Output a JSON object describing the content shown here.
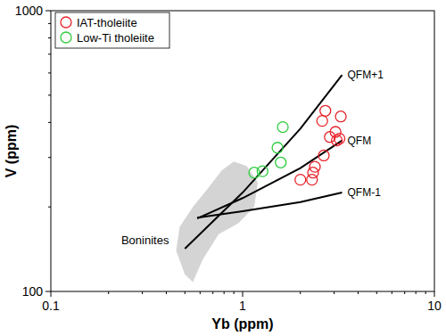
{
  "chart_data": {
    "type": "scatter",
    "x_label": "Yb (ppm)",
    "y_label": "V (ppm)",
    "log": true,
    "xlim": [
      0.1,
      10
    ],
    "ylim": [
      100,
      1000
    ],
    "xticks": [
      0.1,
      1,
      10
    ],
    "yticks": [
      100,
      1000
    ],
    "legend": "top-left",
    "series": [
      {
        "name": "Boninites",
        "type": "area",
        "color": "#d4d4d4",
        "x": [
          0.5,
          0.55,
          0.62,
          0.75,
          0.95,
          1.15,
          1.2,
          1.05,
          0.9,
          0.78,
          0.65,
          0.55,
          0.47,
          0.45
        ],
        "values": [
          115,
          108,
          130,
          160,
          175,
          200,
          245,
          280,
          290,
          270,
          230,
          200,
          170,
          140
        ]
      },
      {
        "name": "QFM+1",
        "type": "line",
        "color": "#000000",
        "x": [
          0.5,
          1,
          2,
          3.3
        ],
        "values": [
          142,
          225,
          380,
          590
        ]
      },
      {
        "name": "QFM",
        "type": "line",
        "color": "#000000",
        "x": [
          0.58,
          1,
          2,
          3.3
        ],
        "values": [
          182,
          215,
          275,
          345
        ]
      },
      {
        "name": "QFM-1",
        "type": "line",
        "color": "#000000",
        "x": [
          0.58,
          1,
          2,
          3.3
        ],
        "values": [
          183,
          193,
          208,
          225
        ]
      },
      {
        "name": "IAT-tholeiite",
        "type": "scatter",
        "marker": "circle",
        "color": "#e8232a",
        "x": [
          2.0,
          2.3,
          2.33,
          2.38,
          2.65,
          2.6,
          2.7,
          2.85,
          3.05,
          3.2,
          3.25,
          3.1
        ],
        "values": [
          250,
          250,
          265,
          278,
          305,
          405,
          440,
          355,
          370,
          350,
          420,
          345
        ]
      },
      {
        "name": "Low-Ti tholeiite",
        "type": "scatter",
        "marker": "circle",
        "color": "#2ecc40",
        "x": [
          1.15,
          1.27,
          1.52,
          1.58,
          1.62
        ],
        "values": [
          265,
          268,
          325,
          288,
          385
        ]
      }
    ]
  }
}
